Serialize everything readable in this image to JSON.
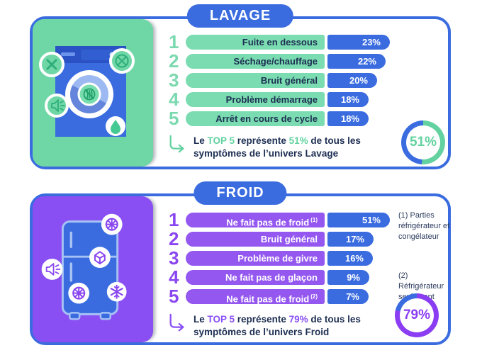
{
  "colors": {
    "blue": "#3a6ce0",
    "green_bg": "#6fd7a6",
    "green_pill": "#7adcb0",
    "green_accent": "#63d2a0",
    "purple_bg": "#8a4ff2",
    "purple_pill": "#9457f0",
    "purple_accent": "#8a3df2",
    "navy_text": "#1d2e52",
    "white": "#ffffff"
  },
  "panels": [
    {
      "title": "LAVAGE",
      "art_icons": [
        "washing-machine",
        "cross-circle-icon",
        "cracked-drum-icon",
        "speaker-icon",
        "water-drop-icon"
      ],
      "rows": [
        {
          "rank": "1",
          "label": "Fuite en dessous",
          "sup": "",
          "value": "23%",
          "value_num": 23
        },
        {
          "rank": "2",
          "label": "Séchage/chauffage",
          "sup": "",
          "value": "22%",
          "value_num": 22
        },
        {
          "rank": "3",
          "label": "Bruit général",
          "sup": "",
          "value": "20%",
          "value_num": 20
        },
        {
          "rank": "4",
          "label": "Problème démarrage",
          "sup": "",
          "value": "18%",
          "value_num": 18
        },
        {
          "rank": "5",
          "label": "Arrêt en cours de cycle",
          "sup": "",
          "value": "18%",
          "value_num": 18
        }
      ],
      "summary": {
        "lead": "Le ",
        "accent1": "TOP 5",
        "mid": " représente ",
        "accent2": "51%",
        "tail": " de tous les symptômes de l’univers Lavage"
      },
      "badge": "51%",
      "badge_num": 51,
      "ring": {
        "filled": "#63d2a0",
        "rest": "#3a6ce0"
      }
    },
    {
      "title": "FROID",
      "art_icons": [
        "refrigerator",
        "fan-icon",
        "ice-cube-icon",
        "speaker-icon",
        "fan-icon",
        "snowflake-icon"
      ],
      "rows": [
        {
          "rank": "1",
          "label": "Ne fait pas de froid",
          "sup": "(1)",
          "value": "51%",
          "value_num": 51
        },
        {
          "rank": "2",
          "label": "Bruit général",
          "sup": "",
          "value": "17%",
          "value_num": 17
        },
        {
          "rank": "3",
          "label": "Problème de givre",
          "sup": "",
          "value": "16%",
          "value_num": 16
        },
        {
          "rank": "4",
          "label": "Ne fait pas de glaçon",
          "sup": "",
          "value": "9%",
          "value_num": 9
        },
        {
          "rank": "5",
          "label": "Ne fait pas de froid",
          "sup": "(2)",
          "value": "7%",
          "value_num": 7
        }
      ],
      "notes": [
        {
          "text": "(1) Parties réfrigérateur et congélateur"
        },
        {
          "text": "(2) Réfrigérateur seulement"
        }
      ],
      "summary": {
        "lead": "Le ",
        "accent1": "TOP 5",
        "mid": " représente ",
        "accent2": "79%",
        "tail": " de tous les symptômes de l’univers Froid"
      },
      "badge": "79%",
      "badge_num": 79,
      "ring": {
        "filled": "#8a3df2",
        "rest": "#3a6ce0"
      }
    }
  ],
  "chart_data": [
    {
      "type": "bar",
      "title": "LAVAGE",
      "categories": [
        "Fuite en dessous",
        "Séchage/chauffage",
        "Bruit général",
        "Problème démarrage",
        "Arrêt en cours de cycle"
      ],
      "values": [
        23,
        22,
        20,
        18,
        18
      ],
      "unit": "%",
      "annotation": "Le TOP 5 représente 51% de tous les symptômes de l’univers Lavage",
      "top5_share_pct": 51,
      "orientation": "horizontal",
      "legend": false,
      "grid": false
    },
    {
      "type": "bar",
      "title": "FROID",
      "categories": [
        "Ne fait pas de froid (1)",
        "Bruit général",
        "Problème de givre",
        "Ne fait pas de glaçon",
        "Ne fait pas de froid (2)"
      ],
      "values": [
        51,
        17,
        16,
        9,
        7
      ],
      "unit": "%",
      "footnotes": [
        "(1) Parties réfrigérateur et congélateur",
        "(2) Réfrigérateur seulement"
      ],
      "annotation": "Le TOP 5 représente 79% de tous les symptômes de l’univers Froid",
      "top5_share_pct": 79,
      "orientation": "horizontal",
      "legend": false,
      "grid": false
    }
  ]
}
